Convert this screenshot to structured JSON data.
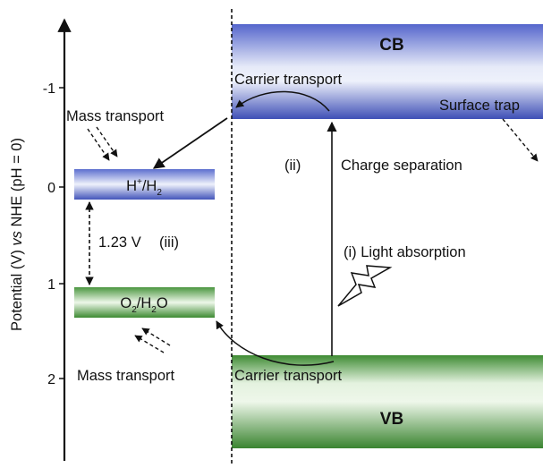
{
  "axis": {
    "title_prefix": "Potential (V) ",
    "title_vs": "vs",
    "title_suffix": " NHE (pH = 0)",
    "ticks": [
      "-1",
      "0",
      "1",
      "2"
    ]
  },
  "bands": {
    "cb": "CB",
    "vb": "VB"
  },
  "levels": {
    "h_plus": "H",
    "h_plus_sup": "+",
    "h2_slash": "/H",
    "h2_sub": "2",
    "o2": "O",
    "o2_sub": "2",
    "h2o_slash": "/H",
    "h2o_sub": "2",
    "h2o_o": "O"
  },
  "labels": {
    "mass_transport_top": "Mass transport",
    "mass_transport_bottom": "Mass transport",
    "carrier_transport_top": "Carrier transport",
    "carrier_transport_bottom": "Carrier transport",
    "surface_trap": "Surface trap",
    "step_ii": "(ii)",
    "charge_separation": "Charge separation",
    "light_absorption": "(i) Light absorption",
    "voltage_gap": "1.23 V",
    "step_iii": "(iii)"
  },
  "colors": {
    "cb_blue": "#4a5fc4",
    "vb_green": "#3d8a32",
    "arrow": "#111111"
  }
}
